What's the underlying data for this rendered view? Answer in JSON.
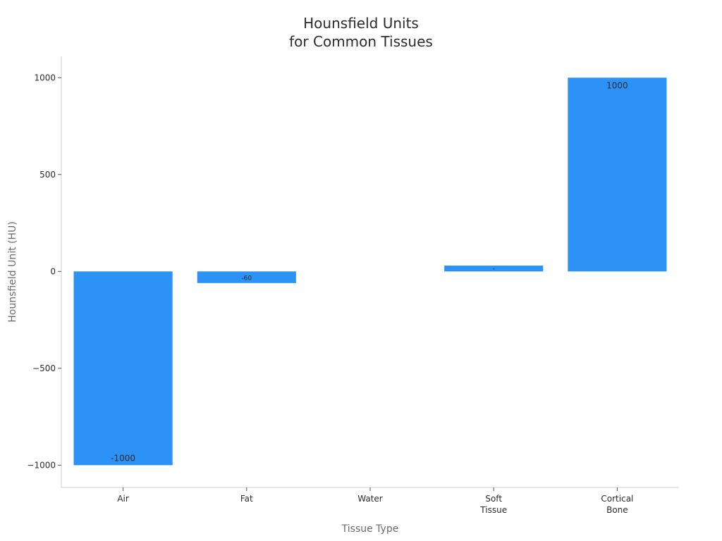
{
  "chart_data": {
    "type": "bar",
    "title_lines": [
      "Hounsfield Units",
      "for Common Tissues"
    ],
    "xlabel": "Tissue Type",
    "ylabel": "Hounsfield Unit (HU)",
    "categories": [
      [
        "Air"
      ],
      [
        "Fat"
      ],
      [
        "Water"
      ],
      [
        "Soft",
        "Tissue"
      ],
      [
        "Cortical",
        "Bone"
      ]
    ],
    "values": [
      -1000,
      -60,
      0,
      30,
      1000
    ],
    "data_labels": [
      "-1000",
      "-60",
      "",
      "-",
      "1000"
    ],
    "ylim": [
      -1115,
      1110
    ],
    "yticks": [
      {
        "value": 1000,
        "label": "1000"
      },
      {
        "value": 500,
        "label": "500"
      },
      {
        "value": 0,
        "label": "0"
      },
      {
        "value": -500,
        "label": "−500"
      },
      {
        "value": -1000,
        "label": "−1000"
      }
    ],
    "bar_color": "#2d92f6",
    "grid": false,
    "legend": "none"
  }
}
